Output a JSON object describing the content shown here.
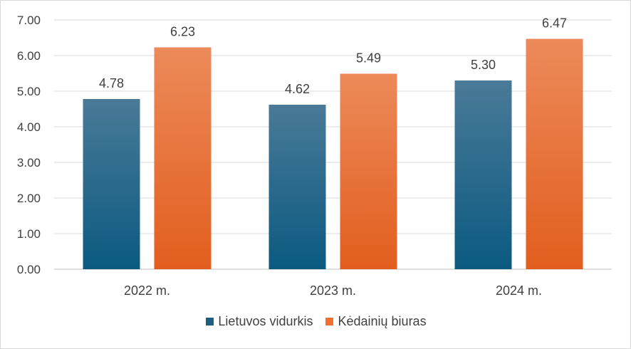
{
  "chart_data": {
    "type": "bar",
    "categories": [
      "2022 m.",
      "2023 m.",
      "2024 m."
    ],
    "series": [
      {
        "name": "Lietuvos vidurkis",
        "values": [
          4.78,
          4.62,
          5.3
        ],
        "labels": [
          "4.78",
          "4.62",
          "5.30"
        ],
        "color": "#1d5f80",
        "color_top": "#4a7a98",
        "color_bottom": "#0b5a80"
      },
      {
        "name": "Kėdainių biuras",
        "values": [
          6.23,
          5.49,
          6.47
        ],
        "labels": [
          "6.23",
          "5.49",
          "6.47"
        ],
        "color": "#f07030",
        "color_top": "#ec8a5a",
        "color_bottom": "#e25e1e"
      }
    ],
    "y_ticks": [
      "0.00",
      "1.00",
      "2.00",
      "3.00",
      "4.00",
      "5.00",
      "6.00",
      "7.00"
    ],
    "ylim": [
      0,
      7
    ],
    "grid": true,
    "legend_position": "bottom"
  }
}
